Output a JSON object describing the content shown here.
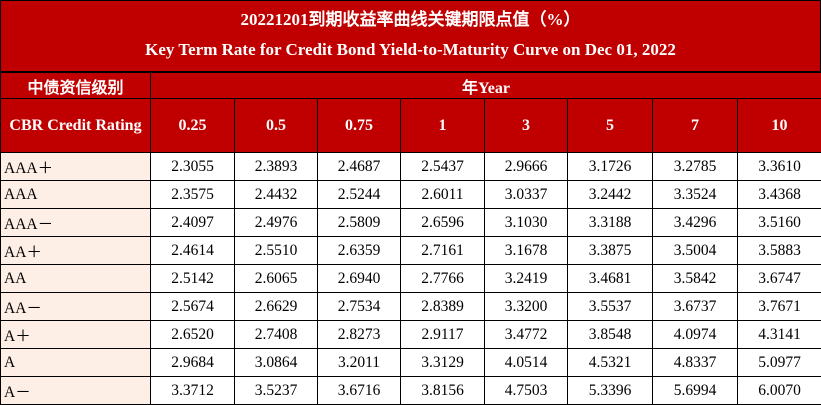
{
  "header": {
    "title_cn": "20221201到期收益率曲线关键期限点值（%）",
    "title_en": "Key Term Rate for Credit Bond Yield-to-Maturity Curve on Dec 01, 2022"
  },
  "table": {
    "rating_label_cn": "中债资信级别",
    "rating_label_en": "CBR Credit Rating",
    "year_label": "年Year",
    "columns": [
      "0.25",
      "0.5",
      "0.75",
      "1",
      "3",
      "5",
      "7",
      "10"
    ],
    "rows": [
      {
        "rating": "AAA＋",
        "values": [
          "2.3055",
          "2.3893",
          "2.4687",
          "2.5437",
          "2.9666",
          "3.1726",
          "3.2785",
          "3.3610"
        ]
      },
      {
        "rating": "AAA",
        "values": [
          "2.3575",
          "2.4432",
          "2.5244",
          "2.6011",
          "3.0337",
          "3.2442",
          "3.3524",
          "3.4368"
        ]
      },
      {
        "rating": "AAA－",
        "values": [
          "2.4097",
          "2.4976",
          "2.5809",
          "2.6596",
          "3.1030",
          "3.3188",
          "3.4296",
          "3.5160"
        ]
      },
      {
        "rating": "AA＋",
        "values": [
          "2.4614",
          "2.5510",
          "2.6359",
          "2.7161",
          "3.1678",
          "3.3875",
          "3.5004",
          "3.5883"
        ]
      },
      {
        "rating": "AA",
        "values": [
          "2.5142",
          "2.6065",
          "2.6940",
          "2.7766",
          "3.2419",
          "3.4681",
          "3.5842",
          "3.6747"
        ]
      },
      {
        "rating": "AA－",
        "values": [
          "2.5674",
          "2.6629",
          "2.7534",
          "2.8389",
          "3.3200",
          "3.5537",
          "3.6737",
          "3.7671"
        ]
      },
      {
        "rating": "A＋",
        "values": [
          "2.6520",
          "2.7408",
          "2.8273",
          "2.9117",
          "3.4772",
          "3.8548",
          "4.0974",
          "4.3141"
        ]
      },
      {
        "rating": "A",
        "values": [
          "2.9684",
          "3.0864",
          "3.2011",
          "3.3129",
          "4.0514",
          "4.5321",
          "4.8337",
          "5.0977"
        ]
      },
      {
        "rating": "A－",
        "values": [
          "3.3712",
          "3.5237",
          "3.6716",
          "3.8156",
          "4.7503",
          "5.3396",
          "5.6994",
          "6.0070"
        ]
      }
    ]
  }
}
